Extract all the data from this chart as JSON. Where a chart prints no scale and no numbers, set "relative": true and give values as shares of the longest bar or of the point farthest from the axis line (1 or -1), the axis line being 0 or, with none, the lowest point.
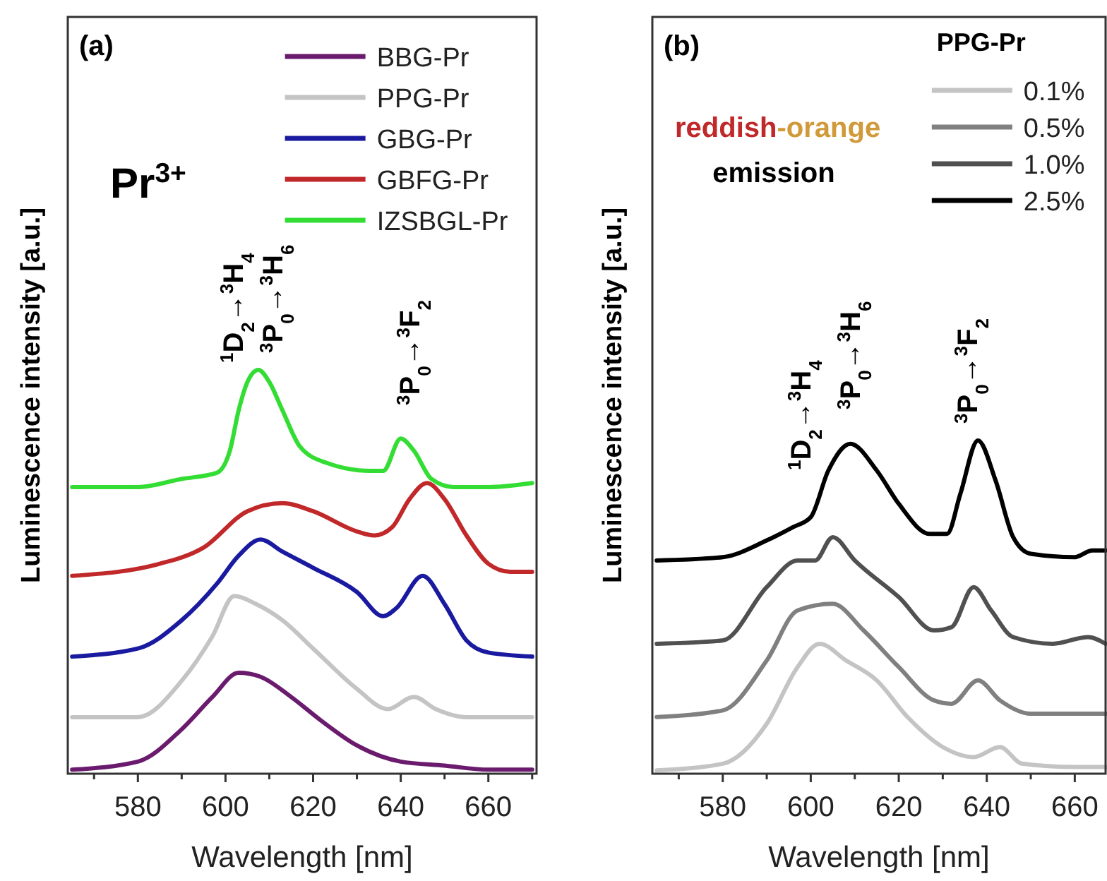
{
  "chart_data": [
    {
      "type": "line",
      "title": "(a)",
      "xlabel": "Wavelength [nm]",
      "ylabel": "Luminescence intensity [a.u.]",
      "relative": true,
      "legend": "top right",
      "xlim": [
        564,
        671
      ],
      "xticks": [
        {
          "value": 570,
          "label": null
        },
        580,
        {
          "value": 590,
          "label": null
        },
        600,
        {
          "value": 610,
          "label": null
        },
        620,
        {
          "value": 630,
          "label": null
        },
        640,
        {
          "value": 650,
          "label": null
        },
        660,
        {
          "value": 670,
          "label": null
        }
      ],
      "annotations": [
        "Pr$^{3+}$",
        "$^{1}$D$_{2}$→$^{3}$H$_{4}$",
        "$^{3}$P$_{0}$→$^{3}$H$_{6}$",
        "$^{3}$P$_{0}$→$^{3}$F$_{2}$"
      ],
      "series": [
        {
          "name": "BBG-Pr",
          "color": "#6a1b6e",
          "x": [
            565,
            580,
            590,
            597,
            603,
            608,
            615,
            622,
            630,
            640,
            650,
            660,
            670
          ],
          "values": [
            0.01,
            0.03,
            0.11,
            0.19,
            0.25,
            0.24,
            0.19,
            0.13,
            0.07,
            0.03,
            0.02,
            0.01,
            0.01
          ]
        },
        {
          "name": "PPG-Pr",
          "color": "#c4c4c4",
          "x": [
            565,
            580,
            590,
            597,
            602,
            607,
            613,
            620,
            630,
            637,
            643,
            648,
            655,
            670
          ],
          "values": [
            0.14,
            0.14,
            0.23,
            0.34,
            0.44,
            0.42,
            0.38,
            0.31,
            0.21,
            0.16,
            0.19,
            0.16,
            0.14,
            0.14
          ]
        },
        {
          "name": "GBG-Pr",
          "color": "#1a1aa0",
          "x": [
            565,
            580,
            590,
            598,
            603,
            608,
            613,
            620,
            630,
            636,
            639,
            645,
            650,
            655,
            660,
            670
          ],
          "values": [
            0.29,
            0.31,
            0.38,
            0.47,
            0.54,
            0.58,
            0.55,
            0.51,
            0.45,
            0.39,
            0.41,
            0.49,
            0.42,
            0.33,
            0.3,
            0.29
          ]
        },
        {
          "name": "GBFG-Pr",
          "color": "#c0282a",
          "x": [
            565,
            585,
            595,
            605,
            613,
            620,
            630,
            634,
            638,
            642,
            646,
            650,
            655,
            660,
            665,
            670
          ],
          "values": [
            0.49,
            0.52,
            0.56,
            0.65,
            0.67,
            0.65,
            0.6,
            0.59,
            0.61,
            0.68,
            0.72,
            0.68,
            0.59,
            0.52,
            0.5,
            0.5
          ]
        },
        {
          "name": "IZSBGL-Pr",
          "color": "#33dd33",
          "x": [
            565,
            580,
            590,
            598,
            601,
            603,
            605,
            607.5,
            610,
            613,
            617,
            623,
            633,
            636,
            640,
            643,
            647,
            652,
            660,
            670
          ],
          "values": [
            0.71,
            0.71,
            0.73,
            0.745,
            0.8,
            0.9,
            0.97,
            1.0,
            0.97,
            0.9,
            0.81,
            0.77,
            0.75,
            0.75,
            0.83,
            0.8,
            0.73,
            0.71,
            0.71,
            0.72
          ]
        }
      ]
    },
    {
      "type": "line",
      "title": "(b)",
      "xlabel": "Wavelength [nm]",
      "ylabel": "Luminescence intensity [a.u.]",
      "relative": true,
      "legend": "top right",
      "legend_title": "PPG-Pr",
      "xlim": [
        564,
        667
      ],
      "xticks": [
        {
          "value": 570,
          "label": null
        },
        580,
        {
          "value": 590,
          "label": null
        },
        600,
        {
          "value": 610,
          "label": null
        },
        620,
        {
          "value": 630,
          "label": null
        },
        640,
        {
          "value": 650,
          "label": null
        },
        660
      ],
      "annotations": [
        "reddish",
        "-orange",
        "emission",
        "$^{1}$D$_{2}$→$^{3}$H$_{4}$",
        "$^{3}$P$_{0}$→$^{3}$H$_{6}$",
        "$^{3}$P$_{0}$→$^{3}$F$_{2}$"
      ],
      "series": [
        {
          "name": "0.1%",
          "color": "#c4c4c4",
          "x": [
            565,
            580,
            590,
            597,
            602,
            608,
            615,
            622,
            630,
            637,
            643,
            648,
            660,
            667
          ],
          "values": [
            0.01,
            0.03,
            0.15,
            0.32,
            0.39,
            0.34,
            0.28,
            0.17,
            0.08,
            0.05,
            0.08,
            0.03,
            0.02,
            0.02
          ]
        },
        {
          "name": "0.5%",
          "color": "#808080",
          "x": [
            565,
            580,
            590,
            597,
            605,
            612,
            620,
            628,
            632,
            638,
            643,
            650,
            667
          ],
          "values": [
            0.17,
            0.19,
            0.34,
            0.49,
            0.51,
            0.43,
            0.32,
            0.22,
            0.21,
            0.28,
            0.22,
            0.18,
            0.18
          ]
        },
        {
          "name": "1.0%",
          "color": "#505050",
          "x": [
            565,
            580,
            590,
            597,
            601,
            605,
            610,
            620,
            628,
            632,
            637,
            641,
            646,
            655,
            663,
            667
          ],
          "values": [
            0.39,
            0.4,
            0.56,
            0.64,
            0.64,
            0.71,
            0.64,
            0.53,
            0.43,
            0.44,
            0.56,
            0.49,
            0.41,
            0.39,
            0.41,
            0.39
          ]
        },
        {
          "name": "2.5%",
          "color": "#000000",
          "x": [
            565,
            580,
            590,
            596,
            600,
            604,
            609,
            615,
            620,
            627,
            631,
            634,
            638,
            642,
            646,
            650,
            660,
            664,
            667
          ],
          "values": [
            0.64,
            0.65,
            0.7,
            0.74,
            0.77,
            0.91,
            0.99,
            0.91,
            0.81,
            0.72,
            0.72,
            0.84,
            1.0,
            0.88,
            0.71,
            0.66,
            0.65,
            0.67,
            0.67
          ]
        }
      ]
    }
  ]
}
